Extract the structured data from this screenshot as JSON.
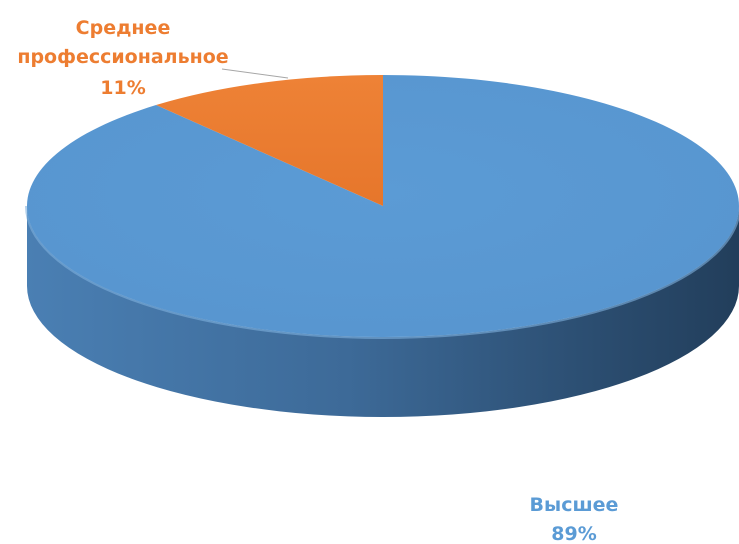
{
  "chart_data": {
    "type": "pie",
    "style": "3d",
    "slices": [
      {
        "label": "Высшее",
        "value": 89,
        "value_label": "89%",
        "color": "#5B9BD5"
      },
      {
        "label": "Среднее профессиональное",
        "label_lines": [
          "Среднее",
          "профессиональное"
        ],
        "value": 11,
        "value_label": "11%",
        "color": "#ED7D31"
      }
    ],
    "legend": "none"
  }
}
